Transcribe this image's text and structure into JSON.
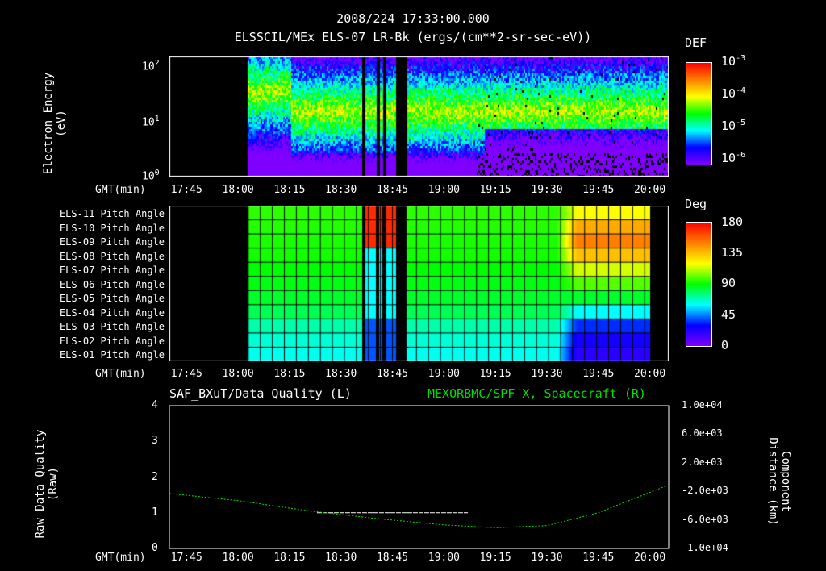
{
  "header": {
    "timestamp": "2008/224 17:33:00.000",
    "subtitle": "ELSSCIL/MEx ELS-07 LR-Bk  (ergs/(cm**2-sr-sec-eV))"
  },
  "time_axis": {
    "label": "GMT(min)",
    "ticks": [
      "17:45",
      "18:00",
      "18:15",
      "18:30",
      "18:45",
      "19:00",
      "19:15",
      "19:30",
      "19:45",
      "20:00"
    ]
  },
  "chart_data": [
    {
      "type": "heatmap",
      "title": "ELSSCIL/MEx ELS-07 LR-Bk",
      "ylabel": "Electron Energy (eV)",
      "yscale": "log",
      "ylim": [
        1,
        150
      ],
      "yticks": [
        "10",
        "10",
        "10"
      ],
      "ytick_exp": [
        "0",
        "1",
        "2"
      ],
      "colorbar": {
        "title": "DEF",
        "labels": [
          "10",
          "10",
          "10",
          "10"
        ],
        "exps": [
          "-3",
          "-4",
          "-5",
          "-6"
        ],
        "range": [
          1e-06,
          0.001
        ]
      },
      "data_start": "18:03",
      "gaps": [
        [
          "18:36",
          "18:37"
        ],
        [
          "18:40",
          "18:41"
        ],
        [
          "18:42",
          "18:43"
        ],
        [
          "18:46",
          "18:49"
        ]
      ]
    },
    {
      "type": "heatmap",
      "title": "Pitch Angle",
      "rows": [
        "ELS-11 Pitch Angle",
        "ELS-10 Pitch Angle",
        "ELS-09 Pitch Angle",
        "ELS-08 Pitch Angle",
        "ELS-07 Pitch Angle",
        "ELS-06 Pitch Angle",
        "ELS-05 Pitch Angle",
        "ELS-04 Pitch Angle",
        "ELS-03 Pitch Angle",
        "ELS-02 Pitch Angle",
        "ELS-01 Pitch Angle"
      ],
      "row_values_early": [
        95,
        94,
        93,
        92,
        90,
        88,
        85,
        80,
        70,
        65,
        62
      ],
      "row_values_late": [
        120,
        140,
        150,
        135,
        115,
        100,
        85,
        60,
        35,
        25,
        20
      ],
      "colorbar": {
        "title": "Deg",
        "labels": [
          "180",
          "135",
          "90",
          "45",
          "0"
        ],
        "range": [
          0,
          180
        ]
      }
    },
    {
      "type": "line",
      "title_left": "SAF_BXuT/Data Quality (L)",
      "title_right": "MEXORBMC/SPF X, Spacecraft (R)",
      "ylabel_left": "Raw Data Quality (Raw)",
      "ylabel_right": "Component Distance (km)",
      "yticks_left": [
        "4",
        "3",
        "2",
        "1",
        "0"
      ],
      "yticks_right": [
        "1.0e+04",
        "6.0e+03",
        "2.0e+03",
        "-2.0e+03",
        "-6.0e+03",
        "-1.0e+04"
      ],
      "ylim_left": [
        0,
        4
      ],
      "ylim_right": [
        -10000,
        10000
      ],
      "series": [
        {
          "name": "Data Quality",
          "color": "#ffffff",
          "segments": [
            {
              "from": "17:50",
              "to": "18:23",
              "value": 2
            },
            {
              "from": "18:23",
              "to": "19:07",
              "value": 1
            },
            {
              "from": "19:07",
              "to": "20:00",
              "value": 0
            }
          ]
        },
        {
          "name": "Spacecraft X",
          "color": "#00e000",
          "x": [
            "17:40",
            "18:00",
            "18:20",
            "18:40",
            "19:00",
            "19:15",
            "19:30",
            "19:45",
            "20:05"
          ],
          "y": [
            -2300,
            -3300,
            -4700,
            -5800,
            -6700,
            -7100,
            -6800,
            -5000,
            -1200
          ]
        }
      ]
    }
  ],
  "colors": {
    "accent_green": "#00e000"
  }
}
